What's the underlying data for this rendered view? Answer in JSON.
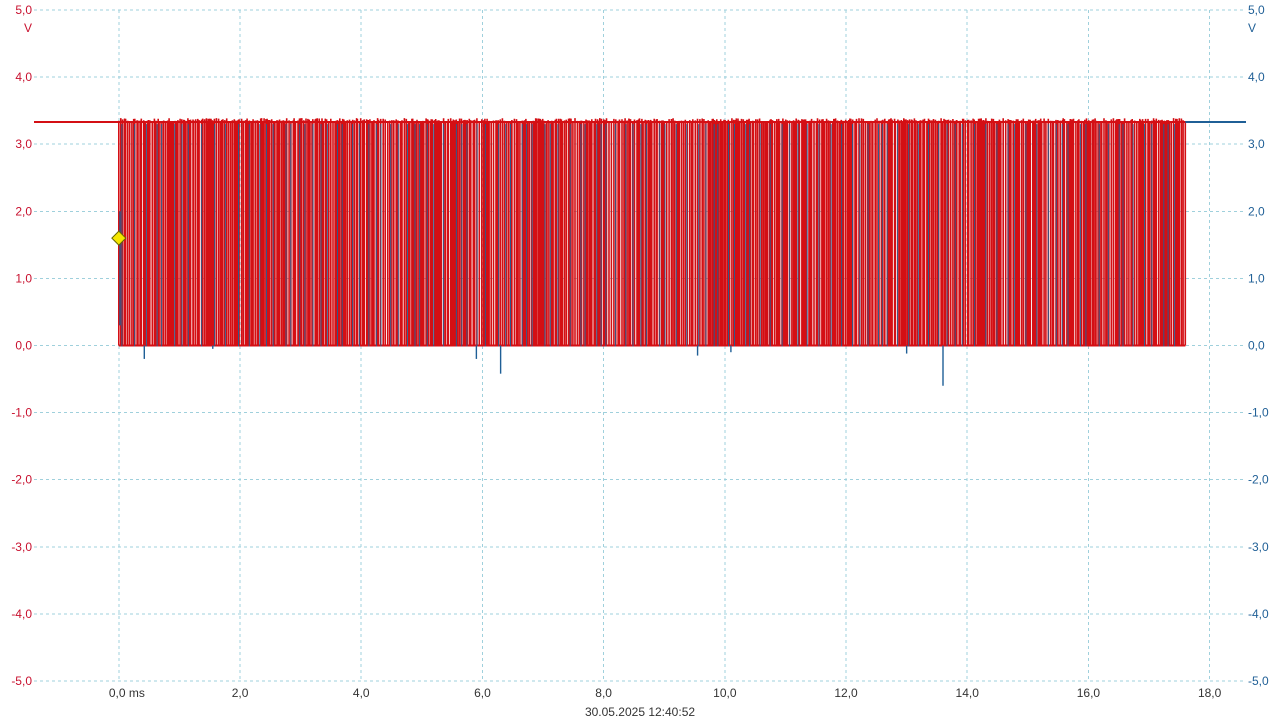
{
  "chart_data": {
    "type": "line",
    "timestamp": "30.05.2025 12:40:52",
    "x_unit_label": "0,0 ms",
    "x_range": [
      -1.4,
      18.6
    ],
    "x_ticks": [
      0,
      2,
      4,
      6,
      8,
      10,
      12,
      14,
      16,
      18
    ],
    "x_tick_labels": [
      "0,0 ms",
      "2,0",
      "4,0",
      "6,0",
      "8,0",
      "10,0",
      "12,0",
      "14,0",
      "16,0",
      "18,0"
    ],
    "y_range": [
      -5,
      5
    ],
    "y_ticks": [
      5,
      4,
      3,
      2,
      1,
      0,
      -1,
      -2,
      -3,
      -4,
      -5
    ],
    "y_tick_labels": [
      "5,0",
      "4,0",
      "3,0",
      "2,0",
      "1,0",
      "0,0",
      "-1,0",
      "-2,0",
      "-3,0",
      "-4,0",
      "-5,0"
    ],
    "y_unit": "V",
    "grid": true,
    "trigger": {
      "x": 0.0,
      "y": 1.6,
      "color": "#f5e600"
    },
    "series": [
      {
        "color": "#d40f14",
        "axis": "left",
        "idle_high": 3.33,
        "low": 0.0,
        "high": 3.33,
        "segments": [
          {
            "x": [
              -1.4,
              0.0
            ],
            "y": 3.33
          },
          {
            "x": [
              0.0,
              17.6
            ],
            "y": "toggling 0.0 to 3.33"
          },
          {
            "x": [
              17.6,
              18.6
            ],
            "y": 3.33
          }
        ]
      },
      {
        "color": "#1f5f96",
        "axis": "right",
        "idle_high": 3.33,
        "low": 0.0,
        "high": 3.33,
        "spikes": [
          {
            "x": 0.42,
            "y": -0.2
          },
          {
            "x": 1.55,
            "y": -0.05
          },
          {
            "x": 5.9,
            "y": -0.2
          },
          {
            "x": 6.3,
            "y": -0.42
          },
          {
            "x": 9.55,
            "y": -0.15
          },
          {
            "x": 10.1,
            "y": -0.1
          },
          {
            "x": 13.0,
            "y": -0.12
          },
          {
            "x": 13.6,
            "y": -0.6
          }
        ]
      }
    ]
  }
}
